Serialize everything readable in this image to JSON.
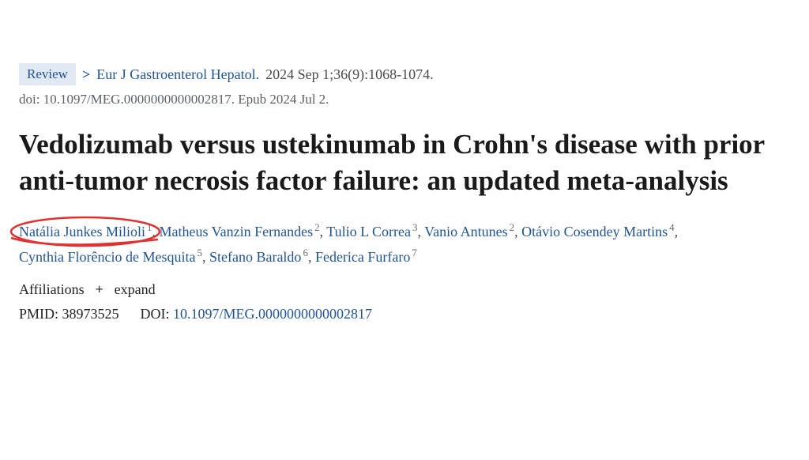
{
  "meta": {
    "review_label": "Review",
    "journal": "Eur J Gastroenterol Hepatol.",
    "citation_tail": "2024 Sep 1;36(9):1068-1074.",
    "doi_line": "doi: 10.1097/MEG.0000000000002817. Epub 2024 Jul 2."
  },
  "title": "Vedolizumab versus ustekinumab in Crohn's disease with prior anti-tumor necrosis factor failure: an updated meta-analysis",
  "authors": [
    {
      "name": "Natália Junkes Milioli",
      "aff": "1"
    },
    {
      "name": "Matheus Vanzin Fernandes",
      "aff": "2"
    },
    {
      "name": "Tulio L Correa",
      "aff": "3"
    },
    {
      "name": "Vanio Antunes",
      "aff": "2"
    },
    {
      "name": "Otávio Cosendey Martins",
      "aff": "4"
    },
    {
      "name": "Cynthia Florêncio de Mesquita",
      "aff": "5"
    },
    {
      "name": "Stefano Baraldo",
      "aff": "6"
    },
    {
      "name": "Federica Furfaro",
      "aff": "7"
    }
  ],
  "affiliations": {
    "label": "Affiliations",
    "expand": "expand"
  },
  "ids": {
    "pmid_label": "PMID:",
    "pmid": "38973525",
    "doi_label": "DOI:",
    "doi": "10.1097/MEG.0000000000002817"
  },
  "annotation": {
    "circle_color": "#e03131",
    "circled_author_index": 0
  },
  "colors": {
    "link": "#205493",
    "badge_bg": "#e1eaf4",
    "muted": "#5b616b"
  }
}
